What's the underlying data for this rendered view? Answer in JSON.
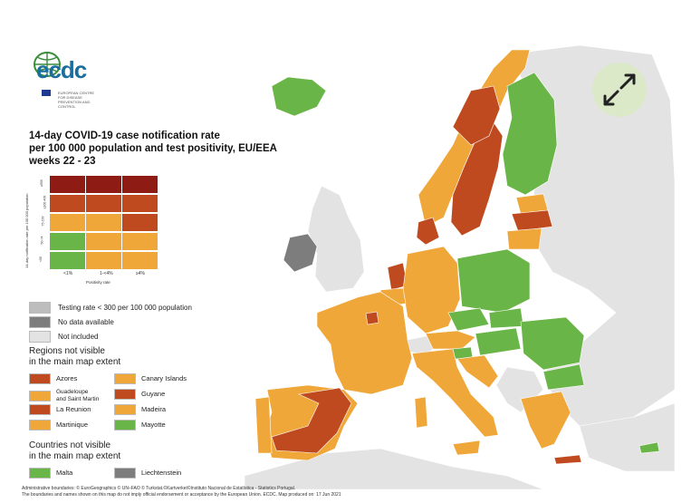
{
  "logo": {
    "text": "ecdc",
    "subtitle": "EUROPEAN CENTRE FOR DISEASE PREVENTION AND CONTROL"
  },
  "title": [
    "14-day COVID-19 case notification rate",
    "per 100 000 population and test positivity, EU/EEA",
    "weeks 22 - 23"
  ],
  "colors": {
    "green": "#6ab547",
    "orange": "#f0a73a",
    "red": "#c04a1f",
    "darkred": "#8e1b14",
    "grey_low_testing": "#bdbdbd",
    "grey_no_data": "#7d7d7d",
    "grey_not_included": "#e3e3e3",
    "sea": "#ffffff"
  },
  "matrix": {
    "y_axis_label": "14-day notification rate per 100 000 population",
    "y_ticks": [
      "≥500",
      "≥200-499",
      "75-199",
      "50-74",
      "<50"
    ],
    "x_ticks": [
      "<1%",
      "1-<4%",
      "≥4%"
    ],
    "x_axis_label": "Positivity rate",
    "rows": [
      [
        "darkred",
        "darkred",
        "darkred"
      ],
      [
        "red",
        "red",
        "red"
      ],
      [
        "orange",
        "orange",
        "red"
      ],
      [
        "green",
        "orange",
        "orange"
      ],
      [
        "green",
        "orange",
        "orange"
      ]
    ]
  },
  "legend": [
    {
      "label": "Testing rate < 300 per 100 000 population",
      "color": "grey_low_testing"
    },
    {
      "label": "No data available",
      "color": "grey_no_data"
    },
    {
      "label": "Not included",
      "color": "grey_not_included"
    }
  ],
  "regions_heading": [
    "Regions not visible",
    "in the main map extent"
  ],
  "regions": [
    {
      "label": "Azores",
      "color": "red"
    },
    {
      "label": "Canary Islands",
      "color": "orange"
    },
    {
      "label": "Guadeloupe\nand Saint Martin",
      "color": "orange"
    },
    {
      "label": "Guyane",
      "color": "red"
    },
    {
      "label": "La Reunion",
      "color": "red"
    },
    {
      "label": "Madeira",
      "color": "orange"
    },
    {
      "label": "Martinique",
      "color": "orange"
    },
    {
      "label": "Mayotte",
      "color": "green"
    }
  ],
  "countries_heading": [
    "Countries not visible",
    "in the main map extent"
  ],
  "countries": [
    {
      "label": "Malta",
      "color": "green"
    },
    {
      "label": "Liechtenstein",
      "color": "grey_no_data"
    }
  ],
  "footer": [
    "Administrative boundaries: © EuroGeographics © UN–FAO © Turkstat.©Kartverket©Instituto Nacional de Estatística - Statistics Portugal.",
    "The boundaries and names shown on this map do not imply official endorsement or acceptance by the European Union. ECDC. Map produced on: 17 Jun 2021"
  ],
  "expand_icon": "expand-arrows-icon"
}
